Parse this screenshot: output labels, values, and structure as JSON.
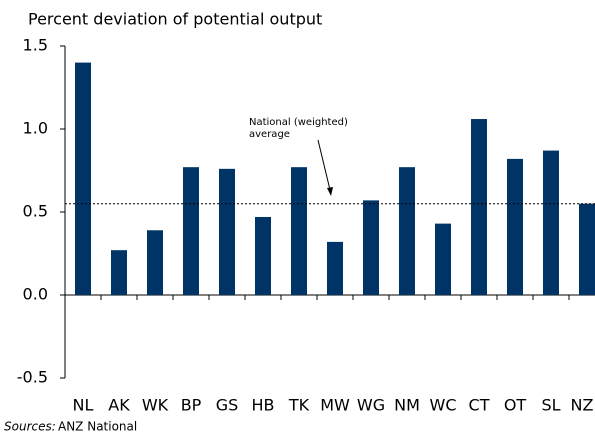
{
  "chart_data": {
    "type": "bar",
    "title": "Percent deviation of potential output",
    "categories": [
      "NL",
      "AK",
      "WK",
      "BP",
      "GS",
      "HB",
      "TK",
      "MW",
      "WG",
      "NM",
      "WC",
      "CT",
      "OT",
      "SL",
      "NZ"
    ],
    "values": [
      1.4,
      0.27,
      0.39,
      0.77,
      0.76,
      0.47,
      0.77,
      0.32,
      0.57,
      0.77,
      0.43,
      1.06,
      0.82,
      0.87,
      0.55
    ],
    "color": "#003366",
    "ylim": [
      -0.5,
      1.5
    ],
    "yticks": [
      -0.5,
      {
        "value": 0,
        "label": "0.0"
      },
      0.5,
      {
        "value": 1,
        "label": "1.0"
      },
      1.5
    ],
    "reference_line": {
      "value": 0.55,
      "label": [
        "National (weighted)",
        "average"
      ]
    },
    "source": {
      "prefix": "Sources:",
      "text": "ANZ National"
    }
  }
}
